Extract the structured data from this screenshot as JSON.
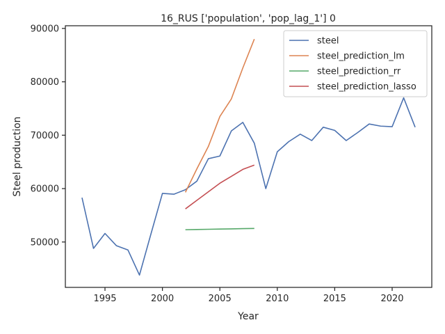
{
  "chart_data": {
    "type": "line",
    "title": "16_RUS ['population', 'pop_lag_1'] 0",
    "xlabel": "Year",
    "ylabel": "Steel production",
    "xlim": [
      1991.55,
      2023.45
    ],
    "ylim": [
      41500,
      90500
    ],
    "xticks": [
      1995,
      2000,
      2005,
      2010,
      2015,
      2020
    ],
    "yticks": [
      50000,
      60000,
      70000,
      80000,
      90000
    ],
    "grid": false,
    "legend_position": "top-right",
    "series": [
      {
        "name": "steel",
        "color": "#4c72b0",
        "x": [
          1993,
          1994,
          1995,
          1996,
          1997,
          1998,
          1999,
          2000,
          2001,
          2002,
          2003,
          2004,
          2005,
          2006,
          2007,
          2008,
          2009,
          2010,
          2011,
          2012,
          2013,
          2014,
          2015,
          2016,
          2017,
          2018,
          2019,
          2020,
          2021,
          2022
        ],
        "y": [
          58300,
          48800,
          51600,
          49300,
          48500,
          43800,
          51500,
          59100,
          58950,
          59800,
          61400,
          65600,
          66100,
          70800,
          72400,
          68500,
          60000,
          66900,
          68800,
          70200,
          69000,
          71500,
          70900,
          69000,
          70500,
          72100,
          71700,
          71600,
          77000,
          71500
        ]
      },
      {
        "name": "steel_prediction_lm",
        "color": "#dd8452",
        "x": [
          2002,
          2003,
          2004,
          2005,
          2006,
          2007,
          2008
        ],
        "y": [
          59300,
          63700,
          67900,
          73500,
          76800,
          82600,
          88000
        ]
      },
      {
        "name": "steel_prediction_rr",
        "color": "#55a868",
        "x": [
          2002,
          2003,
          2004,
          2005,
          2006,
          2007,
          2008
        ],
        "y": [
          52300,
          52340,
          52380,
          52420,
          52460,
          52500,
          52530
        ]
      },
      {
        "name": "steel_prediction_lasso",
        "color": "#c44e52",
        "x": [
          2002,
          2003,
          2004,
          2005,
          2006,
          2007,
          2008
        ],
        "y": [
          56200,
          57800,
          59400,
          61000,
          62300,
          63600,
          64400
        ]
      }
    ]
  }
}
